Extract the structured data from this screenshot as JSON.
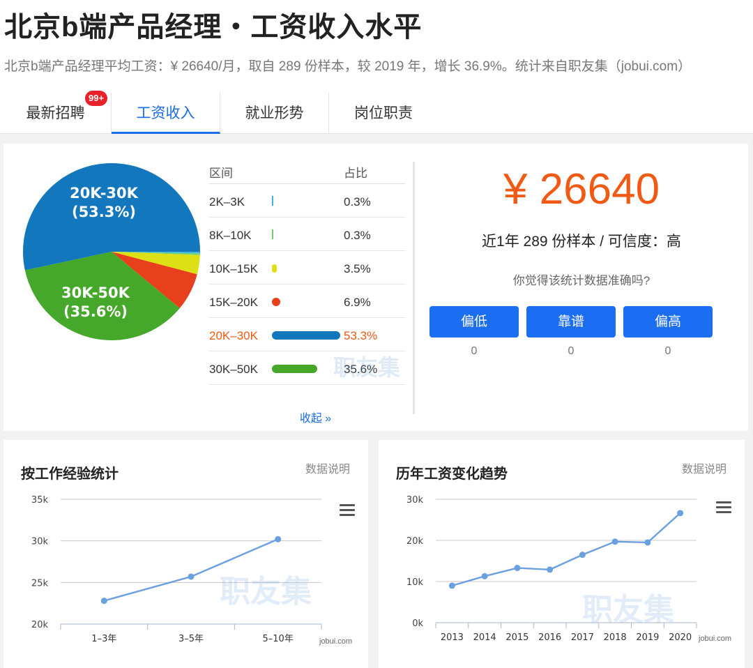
{
  "header": {
    "title": "北京b端产品经理・工资收入水平",
    "subtitle": "北京b端产品经理平均工资：¥ 26640/月，取自 289 份样本，较 2019 年，增长 36.9%。统计来自职友集（jobui.com）"
  },
  "tabs": [
    {
      "label": "最新招聘",
      "badge": "99+"
    },
    {
      "label": "工资收入",
      "active": true
    },
    {
      "label": "就业形势"
    },
    {
      "label": "岗位职责"
    }
  ],
  "distribution": {
    "col_range": "区间",
    "col_share": "占比",
    "rows": [
      {
        "range": "2K–3K",
        "pct": "0.3%",
        "value": 0.3,
        "color": "#41b6e6"
      },
      {
        "range": "8K–10K",
        "pct": "0.3%",
        "value": 0.3,
        "color": "#6fcf6f"
      },
      {
        "range": "10K–15K",
        "pct": "3.5%",
        "value": 3.5,
        "color": "#dde015"
      },
      {
        "range": "15K–20K",
        "pct": "6.9%",
        "value": 6.9,
        "color": "#e8401c"
      },
      {
        "range": "20K–30K",
        "pct": "53.3%",
        "value": 53.3,
        "color": "#1277bd",
        "highlight": true
      },
      {
        "range": "30K–50K",
        "pct": "35.6%",
        "value": 35.6,
        "color": "#46a82a"
      }
    ],
    "collapse_label": "收起 »",
    "watermark": "职友集"
  },
  "pie_labels": {
    "large_a_range": "20K-30K",
    "large_a_pct": "(53.3%)",
    "large_b_range": "30K-50K",
    "large_b_pct": "(35.6%)"
  },
  "summary": {
    "average": "¥ 26640",
    "samples": "近1年 289 份样本 / 可信度：高",
    "question": "你觉得该统计数据准确吗?",
    "votes": [
      {
        "label": "偏低",
        "count": "0"
      },
      {
        "label": "靠谱",
        "count": "0"
      },
      {
        "label": "偏高",
        "count": "0"
      }
    ]
  },
  "experience_chart": {
    "title": "按工作经验统计",
    "note": "数据说明",
    "credit": "jobui.com",
    "watermark": "职友集"
  },
  "trend_chart": {
    "title": "历年工资变化趋势",
    "note": "数据说明",
    "credit": "jobui.com",
    "watermark": "职友集"
  },
  "chart_data": [
    {
      "type": "pie",
      "categories": [
        "2K–3K",
        "8K–10K",
        "10K–15K",
        "15K–20K",
        "20K–30K",
        "30K–50K"
      ],
      "values": [
        0.3,
        0.3,
        3.5,
        6.9,
        53.3,
        35.6
      ],
      "colors": [
        "#41b6e6",
        "#6fcf6f",
        "#dde015",
        "#e8401c",
        "#1277bd",
        "#46a82a"
      ]
    },
    {
      "type": "line",
      "categories": [
        "1–3年",
        "3–5年",
        "5–10年"
      ],
      "values": [
        22800,
        25700,
        30200
      ],
      "yticks": [
        "20k",
        "25k",
        "30k",
        "35k"
      ],
      "ylim": [
        20000,
        35000
      ],
      "color": "#6a9fe0",
      "grid": true
    },
    {
      "type": "line",
      "categories": [
        "2013",
        "2014",
        "2015",
        "2016",
        "2017",
        "2018",
        "2019",
        "2020"
      ],
      "values": [
        9000,
        11300,
        13300,
        12900,
        16500,
        19700,
        19500,
        26640
      ],
      "yticks": [
        "0k",
        "10k",
        "20k",
        "30k"
      ],
      "ylim": [
        0,
        30000
      ],
      "color": "#6a9fe0",
      "grid": true
    }
  ]
}
